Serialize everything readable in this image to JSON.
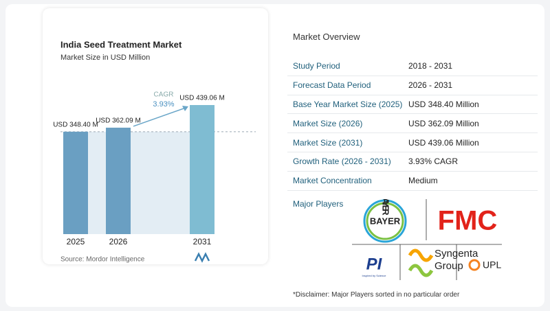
{
  "chart_data": {
    "type": "bar",
    "title": "India Seed Treatment Market",
    "subtitle": "Market Size in USD Million",
    "categories": [
      "2025",
      "2026",
      "2031"
    ],
    "values": [
      348.4,
      362.09,
      439.06
    ],
    "value_labels": [
      "USD 348.40 M",
      "USD 362.09 M",
      "USD 439.06 M"
    ],
    "colors": [
      "#6a9fc2",
      "#6a9fc2",
      "#7fbcd2"
    ],
    "annotation": {
      "label": "CAGR",
      "value": "3.93%"
    },
    "source": "Source: Mordor Intelligence"
  },
  "overview": {
    "title": "Market Overview",
    "rows": [
      [
        "Study Period",
        "2018 - 2031"
      ],
      [
        "Forecast Data Period",
        "2026 - 2031"
      ],
      [
        "Base Year Market Size (2025)",
        "USD 348.40 Million"
      ],
      [
        "Market Size (2026)",
        "USD 362.09 Million"
      ],
      [
        "Market Size (2031)",
        "USD 439.06 Million"
      ],
      [
        "Growth Rate (2026 - 2031)",
        "3.93% CAGR"
      ],
      [
        "Market Concentration",
        "Medium"
      ]
    ],
    "players_label": "Major Players",
    "logos": {
      "bayer": "BAYER",
      "fmc": "FMC",
      "syngenta": [
        "Syngenta",
        "Group"
      ],
      "pi": "PI",
      "pi_tagline": "Inspired by Science",
      "upl": "UPL"
    },
    "disclaimer": "*Disclaimer: Major Players sorted in no particular order"
  }
}
